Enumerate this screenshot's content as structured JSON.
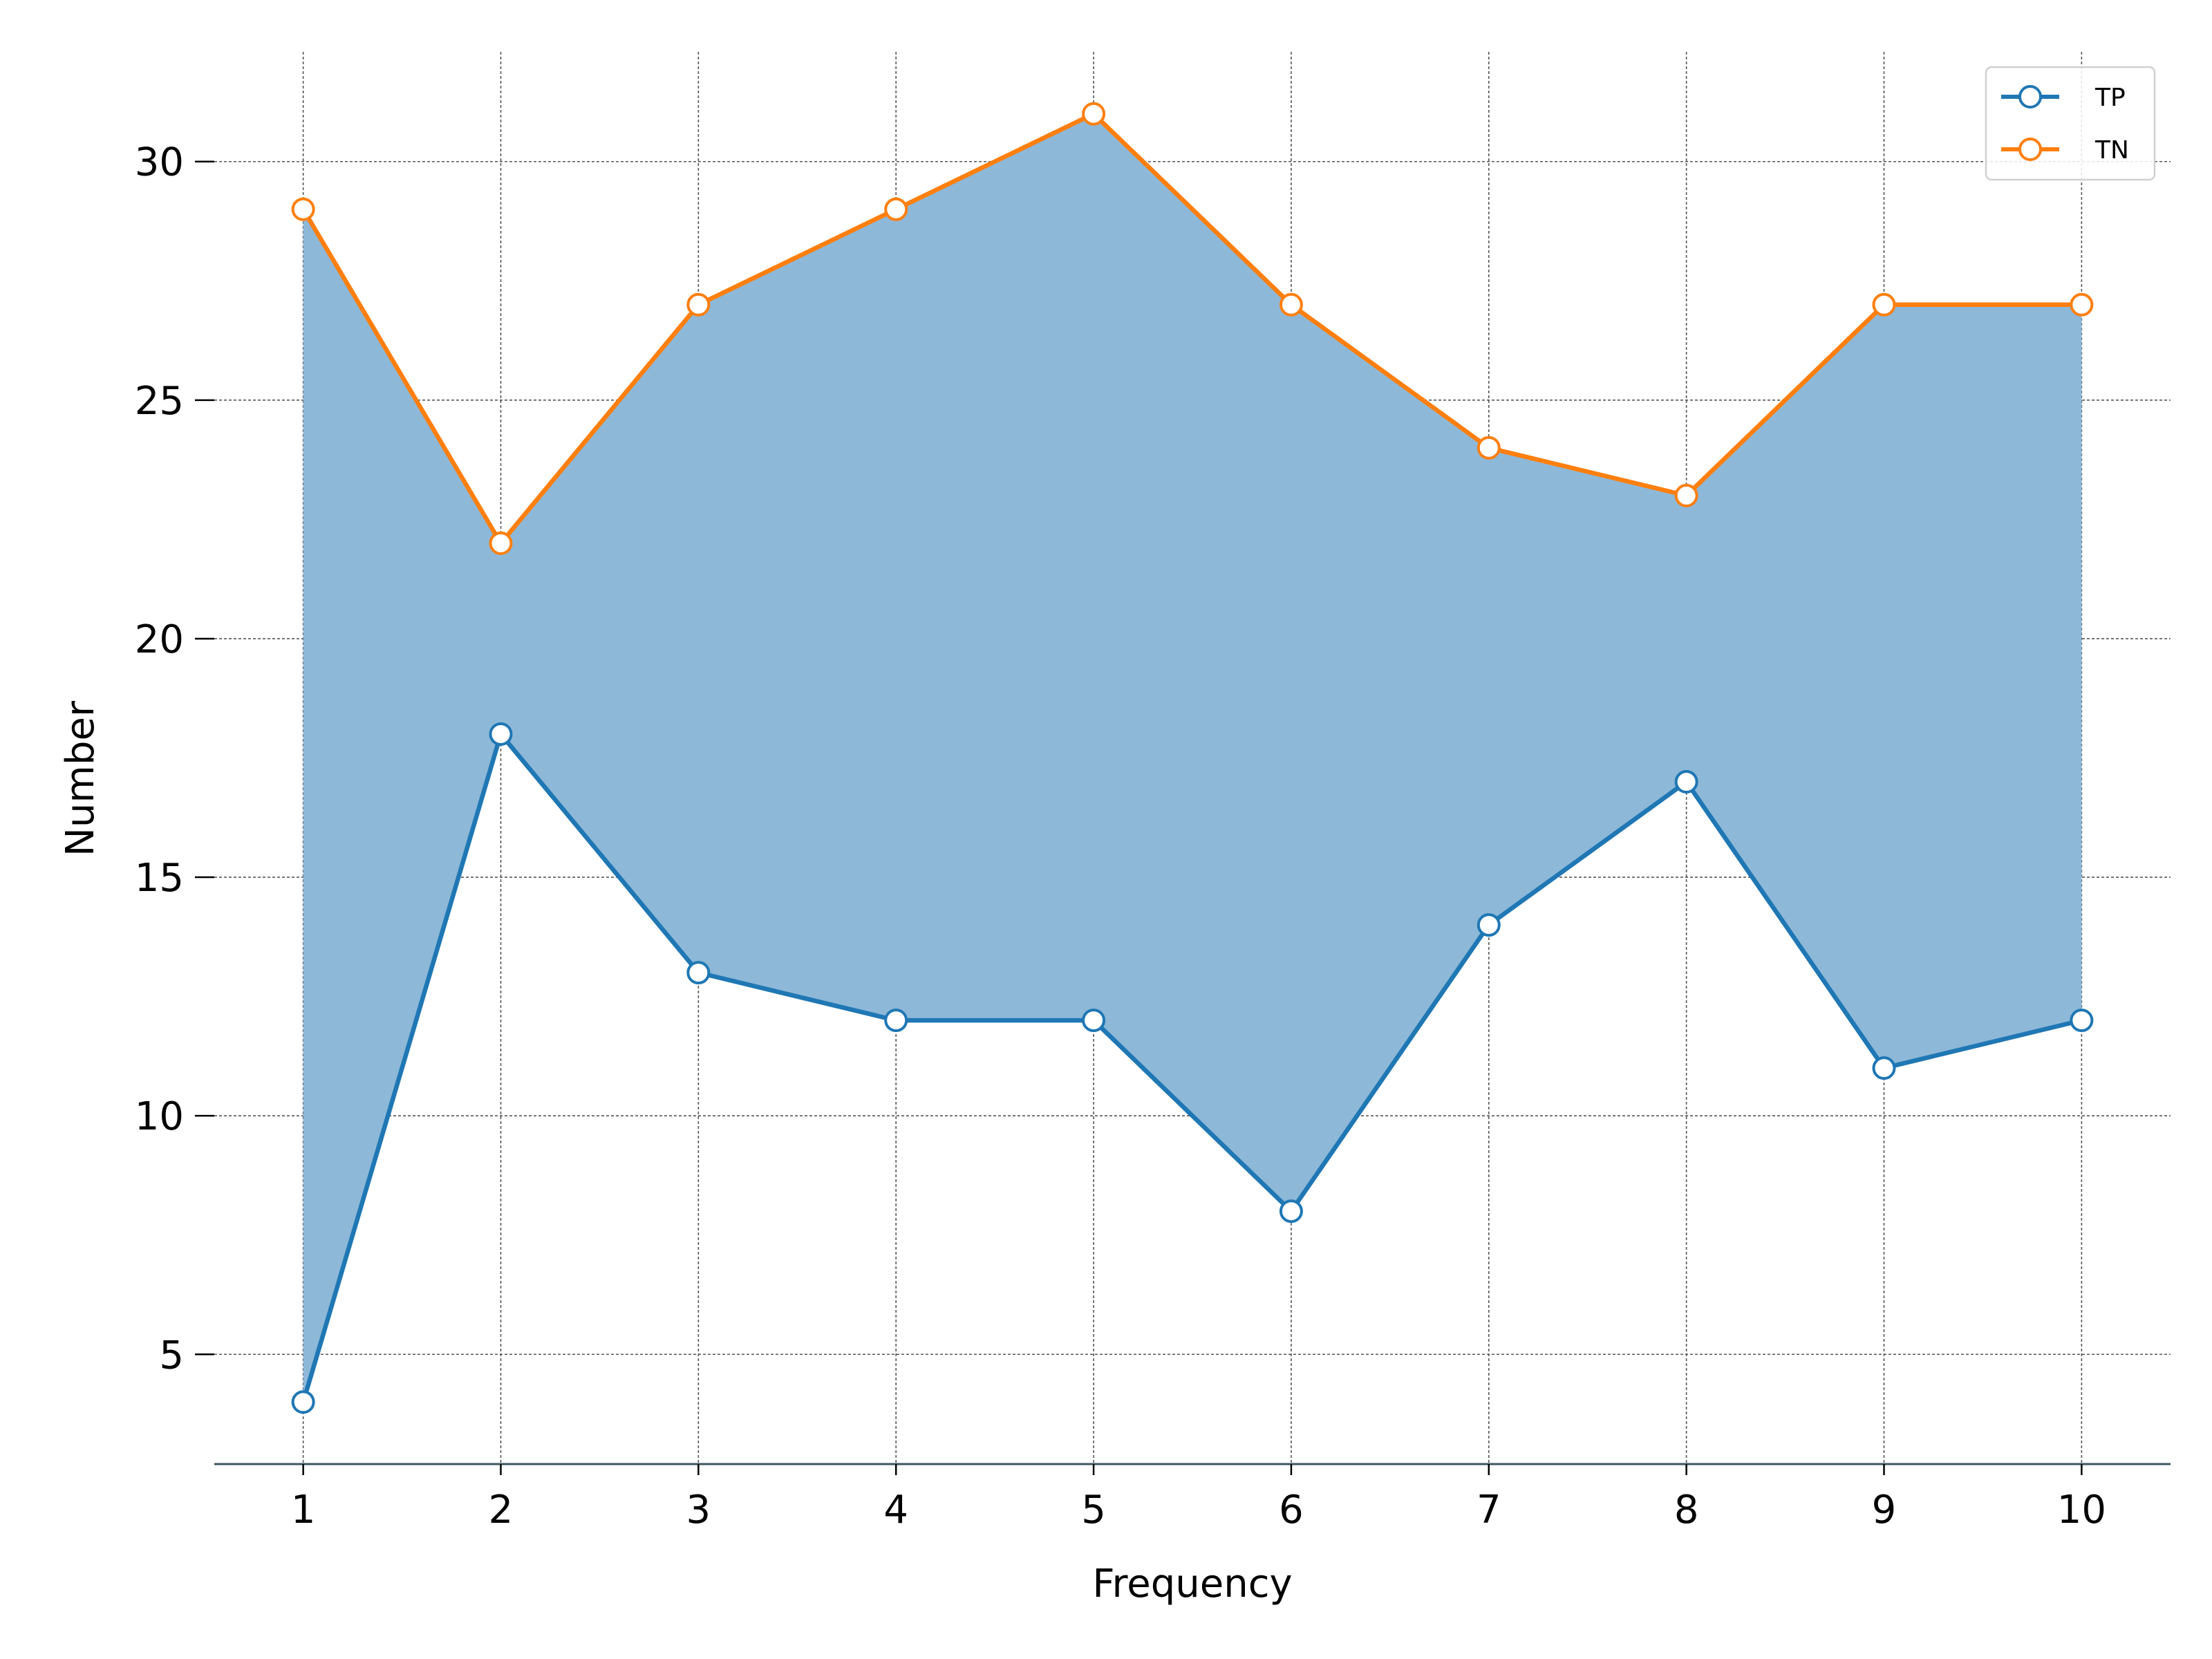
{
  "chart_data": {
    "type": "line",
    "title": "",
    "xlabel": "Frequency",
    "ylabel": "Number",
    "x": [
      1,
      2,
      3,
      4,
      5,
      6,
      7,
      8,
      9,
      10
    ],
    "xlim": [
      0.55,
      10.45
    ],
    "ylim": [
      2.7,
      32.3
    ],
    "xticks": [
      "1",
      "2",
      "3",
      "4",
      "5",
      "6",
      "7",
      "8",
      "9",
      "10"
    ],
    "yticks": [
      5,
      10,
      15,
      20,
      25,
      30
    ],
    "grid": true,
    "fill_between_series": true,
    "fill_color": "#8db8d8",
    "legend_position": "top-right",
    "series": [
      {
        "name": "TP",
        "color": "#1f77b4",
        "values": [
          4,
          18,
          13,
          12,
          12,
          8,
          14,
          17,
          11,
          12
        ]
      },
      {
        "name": "TN",
        "color": "#ff7f0e",
        "values": [
          29,
          22,
          27,
          29,
          31,
          27,
          24,
          23,
          27,
          27
        ]
      }
    ]
  }
}
